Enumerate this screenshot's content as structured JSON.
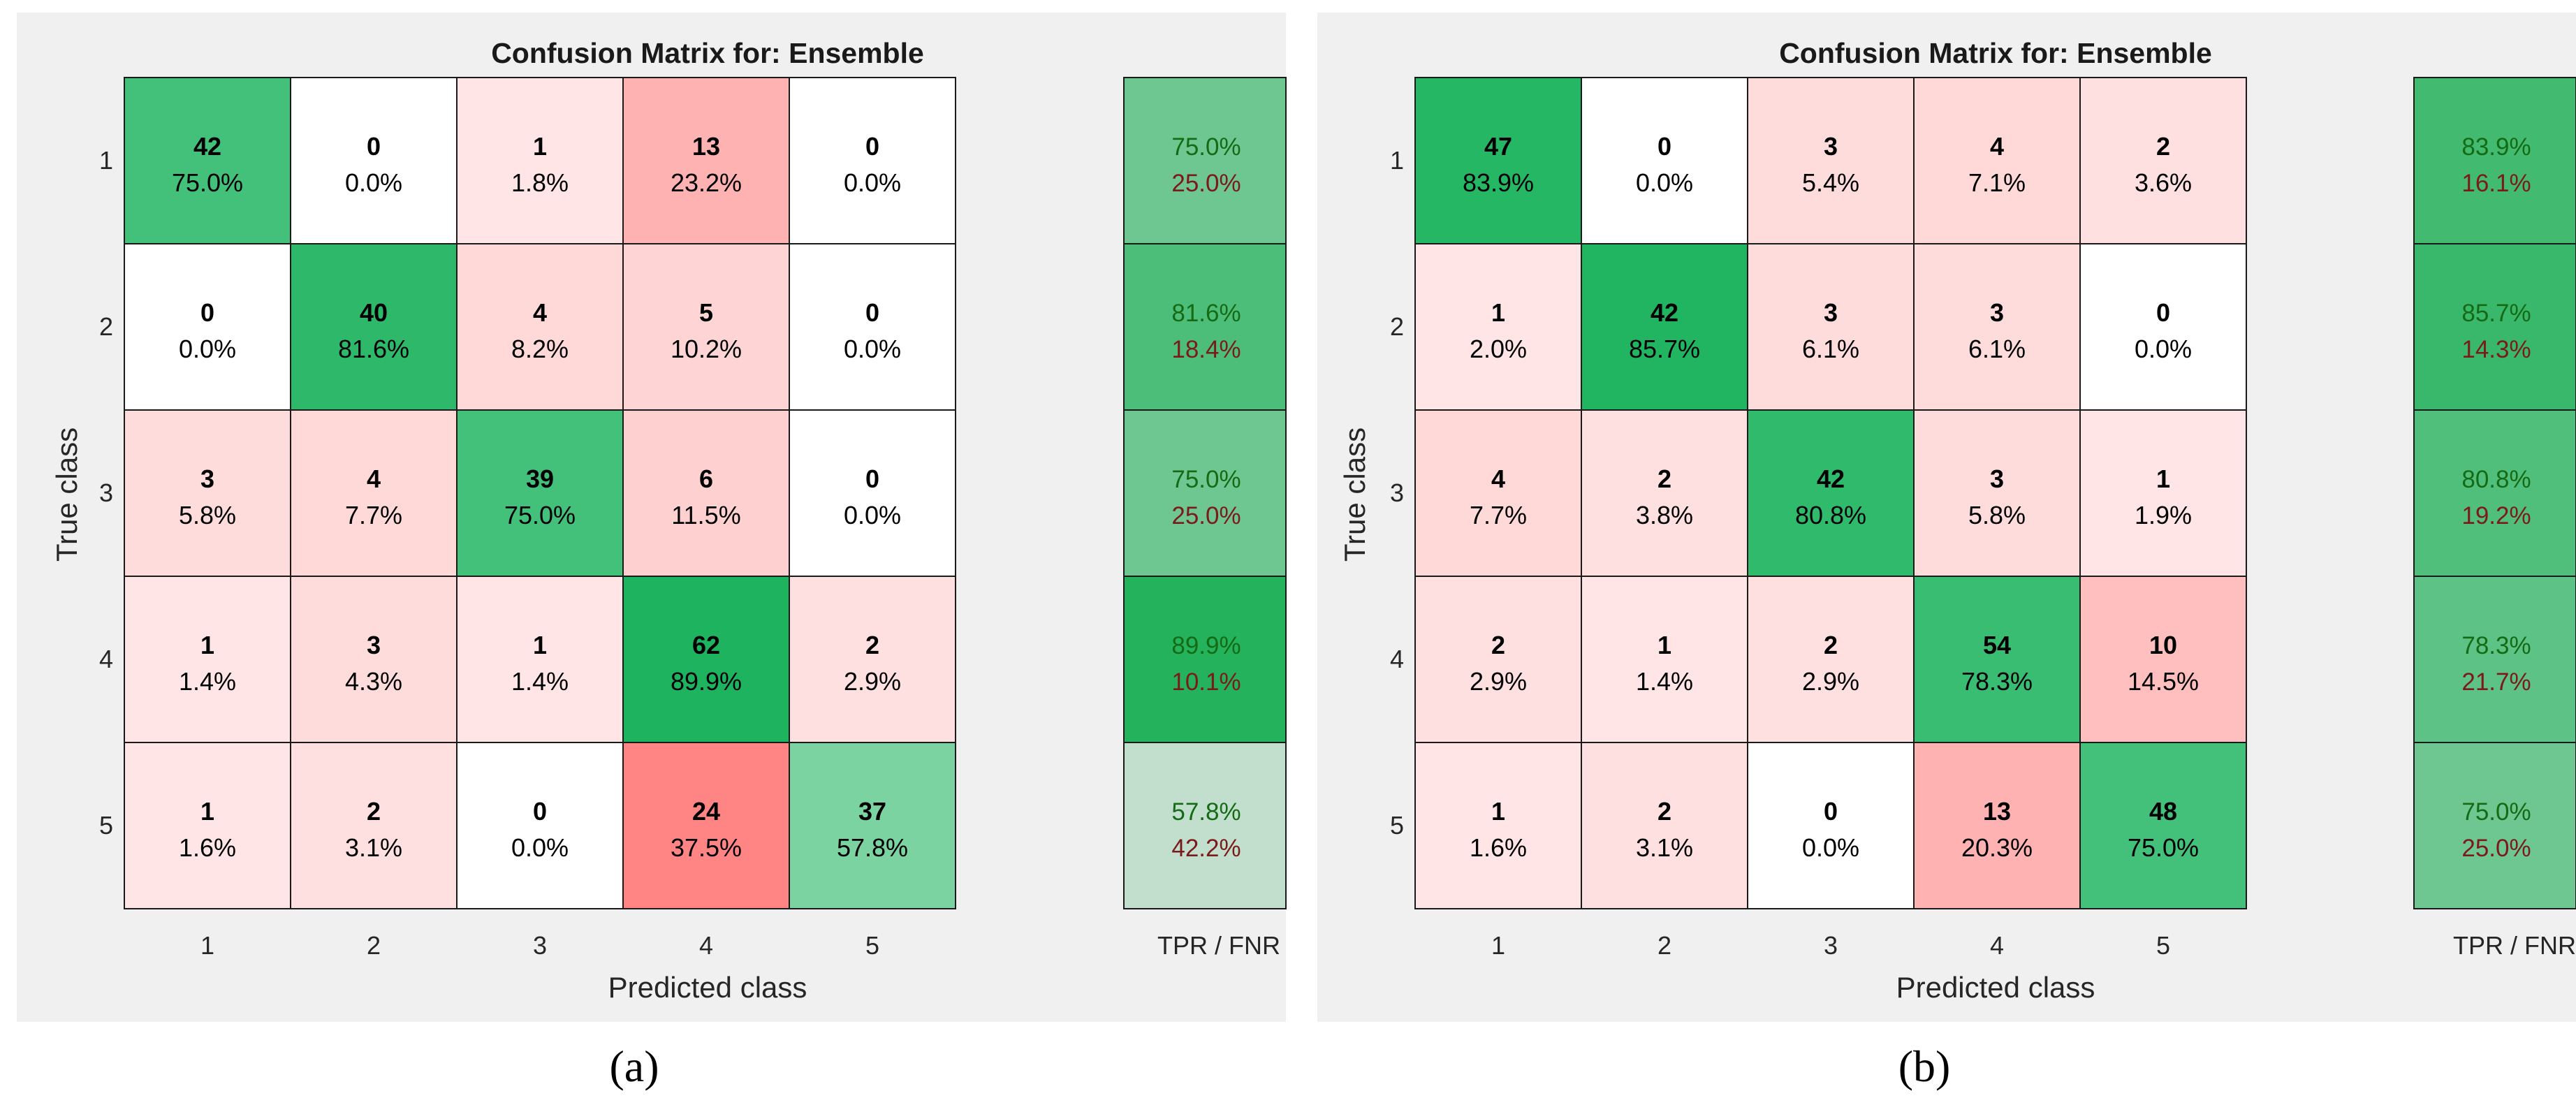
{
  "chart_data": [
    {
      "type": "heatmap",
      "title": "Confusion Matrix for: Ensemble",
      "xlabel": "Predicted class",
      "ylabel": "True class",
      "row_labels": [
        "1",
        "2",
        "3",
        "4",
        "5"
      ],
      "col_labels": [
        "1",
        "2",
        "3",
        "4",
        "5"
      ],
      "counts": [
        [
          42,
          0,
          1,
          13,
          0
        ],
        [
          0,
          40,
          4,
          5,
          0
        ],
        [
          3,
          4,
          39,
          6,
          0
        ],
        [
          1,
          3,
          1,
          62,
          2
        ],
        [
          1,
          2,
          0,
          24,
          37
        ]
      ],
      "percents": [
        [
          "75.0%",
          "0.0%",
          "1.8%",
          "23.2%",
          "0.0%"
        ],
        [
          "0.0%",
          "81.6%",
          "8.2%",
          "10.2%",
          "0.0%"
        ],
        [
          "5.8%",
          "7.7%",
          "75.0%",
          "11.5%",
          "0.0%"
        ],
        [
          "1.4%",
          "4.3%",
          "1.4%",
          "89.9%",
          "2.9%"
        ],
        [
          "1.6%",
          "3.1%",
          "0.0%",
          "37.5%",
          "57.8%"
        ]
      ],
      "summary_label": "TPR / FNR",
      "tpr": [
        "75.0%",
        "81.6%",
        "75.0%",
        "89.9%",
        "57.8%"
      ],
      "fnr": [
        "25.0%",
        "18.4%",
        "25.0%",
        "10.1%",
        "42.2%"
      ],
      "caption": "(a)"
    },
    {
      "type": "heatmap",
      "title": "Confusion Matrix for: Ensemble",
      "xlabel": "Predicted class",
      "ylabel": "True class",
      "row_labels": [
        "1",
        "2",
        "3",
        "4",
        "5"
      ],
      "col_labels": [
        "1",
        "2",
        "3",
        "4",
        "5"
      ],
      "counts": [
        [
          47,
          0,
          3,
          4,
          2
        ],
        [
          1,
          42,
          3,
          3,
          0
        ],
        [
          4,
          2,
          42,
          3,
          1
        ],
        [
          2,
          1,
          2,
          54,
          10
        ],
        [
          1,
          2,
          0,
          13,
          48
        ]
      ],
      "percents": [
        [
          "83.9%",
          "0.0%",
          "5.4%",
          "7.1%",
          "3.6%"
        ],
        [
          "2.0%",
          "85.7%",
          "6.1%",
          "6.1%",
          "0.0%"
        ],
        [
          "7.7%",
          "3.8%",
          "80.8%",
          "5.8%",
          "1.9%"
        ],
        [
          "2.9%",
          "1.4%",
          "2.9%",
          "78.3%",
          "14.5%"
        ],
        [
          "1.6%",
          "3.1%",
          "0.0%",
          "20.3%",
          "75.0%"
        ]
      ],
      "summary_label": "TPR / FNR",
      "tpr": [
        "83.9%",
        "85.7%",
        "80.8%",
        "78.3%",
        "75.0%"
      ],
      "fnr": [
        "16.1%",
        "14.3%",
        "19.2%",
        "21.7%",
        "25.0%"
      ],
      "caption": "(b)"
    }
  ]
}
